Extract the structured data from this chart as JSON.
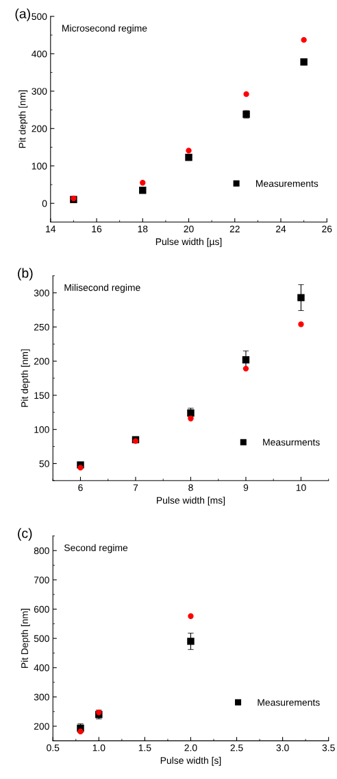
{
  "chart_data": [
    {
      "type": "scatter",
      "title": "(a)",
      "xlabel": "Pulse width [µs]",
      "ylabel": "Pit depth [nm]",
      "annotations": [
        "Microsecond regime"
      ],
      "xlim": [
        14,
        26
      ],
      "xticks": [
        14,
        16,
        18,
        20,
        22,
        24,
        26
      ],
      "ylim": [
        -50,
        500
      ],
      "yticks": [
        0,
        100,
        200,
        300,
        400,
        500
      ],
      "legend": "bottom right",
      "grid": false,
      "series": [
        {
          "name": "Measurements",
          "color": "#000000",
          "marker": "square",
          "x": [
            15,
            18,
            20,
            22.5,
            25
          ],
          "values": [
            10,
            35,
            123,
            238,
            378
          ],
          "errors": [
            null,
            null,
            null,
            10,
            8
          ]
        },
        {
          "color": "#ff0000",
          "marker": "circle",
          "x": [
            15,
            18,
            20,
            22.5,
            25
          ],
          "values": [
            13,
            55,
            141,
            292,
            437
          ]
        }
      ]
    },
    {
      "type": "scatter",
      "title": "(b)",
      "xlabel": "Pulse width [ms]",
      "ylabel": "Pit depth [nm]",
      "annotations": [
        "Milisecond regime"
      ],
      "xlim": [
        5.5,
        10.5
      ],
      "xticks": [
        6,
        7,
        8,
        9,
        10
      ],
      "ylim": [
        25,
        325
      ],
      "yticks": [
        50,
        100,
        150,
        200,
        250,
        300
      ],
      "legend": "bottom right",
      "grid": false,
      "series": [
        {
          "name": "Measurments",
          "color": "#000000",
          "marker": "square",
          "x": [
            6,
            7,
            8,
            9,
            10
          ],
          "values": [
            48,
            85,
            124,
            202,
            293
          ],
          "errors": [
            3,
            null,
            7,
            13,
            19
          ]
        },
        {
          "color": "#ff0000",
          "marker": "circle",
          "x": [
            6,
            7,
            8,
            9,
            10
          ],
          "values": [
            44,
            83,
            116,
            189,
            254
          ]
        }
      ]
    },
    {
      "type": "scatter",
      "title": "(c)",
      "xlabel": "Pulse width [s]",
      "ylabel": "Pit Depth [nm]",
      "annotations": [
        "Second regime"
      ],
      "xlim": [
        0.5,
        3.5
      ],
      "xticks": [
        {
          "value": 0.5,
          "label": "0.5"
        },
        {
          "value": 1.0,
          "label": "1.0"
        },
        {
          "value": 1.5,
          "label": "1.5"
        },
        {
          "value": 2.0,
          "label": "2.0"
        },
        {
          "value": 2.5,
          "label": "2.5"
        },
        {
          "value": 3.0,
          "label": "3.0"
        },
        {
          "value": 3.5,
          "label": "3.5"
        }
      ],
      "ylim": [
        150,
        850
      ],
      "yticks": [
        200,
        300,
        400,
        500,
        600,
        700,
        800
      ],
      "legend": "bottom right",
      "grid": false,
      "series": [
        {
          "name": "Measurements",
          "color": "#000000",
          "marker": "square",
          "x": [
            0.8,
            1.0,
            2.0
          ],
          "values": [
            193,
            240,
            490
          ],
          "errors": [
            15,
            15,
            28
          ]
        },
        {
          "color": "#ff0000",
          "marker": "circle",
          "x": [
            0.8,
            1.0,
            2.0
          ],
          "values": [
            182,
            247,
            576
          ]
        }
      ]
    }
  ]
}
